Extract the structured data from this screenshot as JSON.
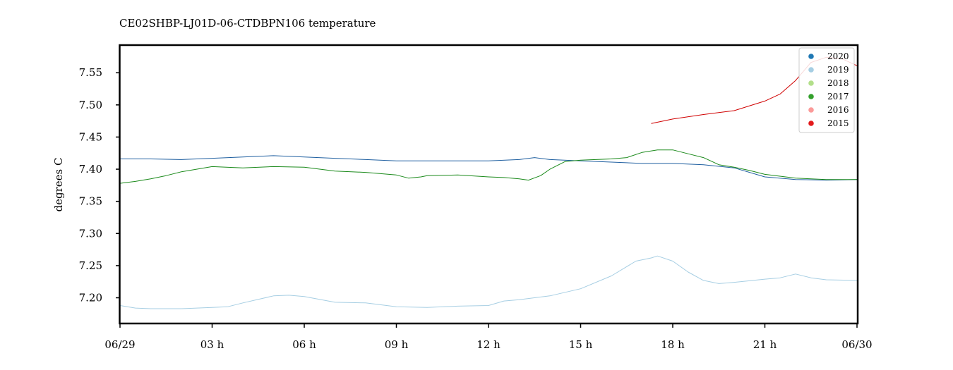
{
  "chart_data": {
    "type": "line",
    "title": "CE02SHBP-LJ01D-06-CTDBPN106 temperature",
    "xlabel": "",
    "ylabel": "degrees C",
    "x_unit": "hours",
    "xlim": [
      0,
      24
    ],
    "ylim": [
      7.16,
      7.593
    ],
    "x_ticks": [
      0,
      3,
      6,
      9,
      12,
      15,
      18,
      21,
      24
    ],
    "x_tick_labels": [
      "06/29",
      "03 h",
      "06 h",
      "09 h",
      "12 h",
      "15 h",
      "18 h",
      "21 h",
      "06/30"
    ],
    "y_ticks": [
      7.2,
      7.25,
      7.3,
      7.35,
      7.4,
      7.45,
      7.5,
      7.55
    ],
    "y_tick_labels": [
      "7.20",
      "7.25",
      "7.30",
      "7.35",
      "7.40",
      "7.45",
      "7.50",
      "7.55"
    ],
    "legend_position": "top-right",
    "grid": false,
    "legend": [
      {
        "name": "2020",
        "color": "#1f78b4"
      },
      {
        "name": "2019",
        "color": "#a6cee3"
      },
      {
        "name": "2018",
        "color": "#b2df8a"
      },
      {
        "name": "2017",
        "color": "#33a02c"
      },
      {
        "name": "2016",
        "color": "#fb9a99"
      },
      {
        "name": "2015",
        "color": "#e31a1c"
      }
    ],
    "series": [
      {
        "name": "2020",
        "color": "#1f5fa0",
        "x": [
          0,
          1,
          2,
          3,
          4,
          5,
          6,
          7,
          8,
          9,
          10,
          11,
          12,
          13,
          13.5,
          14,
          15,
          16,
          17,
          18,
          19,
          20,
          21,
          22,
          23,
          24
        ],
        "y": [
          7.416,
          7.416,
          7.415,
          7.417,
          7.419,
          7.421,
          7.419,
          7.417,
          7.415,
          7.413,
          7.413,
          7.413,
          7.413,
          7.415,
          7.418,
          7.415,
          7.413,
          7.411,
          7.409,
          7.409,
          7.407,
          7.402,
          7.388,
          7.384,
          7.383,
          7.384
        ]
      },
      {
        "name": "2019",
        "color": "#a6cee3",
        "x": [
          0,
          0.5,
          1,
          2,
          3,
          3.5,
          4,
          5,
          5.5,
          6,
          7,
          8,
          9,
          10,
          11,
          12,
          12.5,
          13,
          14,
          15,
          16,
          16.8,
          17.3,
          17.5,
          18,
          18.5,
          19,
          19.5,
          20,
          21,
          21.5,
          22,
          22.5,
          23,
          24
        ],
        "y": [
          7.188,
          7.184,
          7.183,
          7.183,
          7.185,
          7.186,
          7.192,
          7.203,
          7.204,
          7.202,
          7.193,
          7.192,
          7.186,
          7.185,
          7.187,
          7.188,
          7.195,
          7.197,
          7.203,
          7.214,
          7.234,
          7.257,
          7.262,
          7.265,
          7.257,
          7.24,
          7.227,
          7.222,
          7.224,
          7.229,
          7.231,
          7.237,
          7.231,
          7.228,
          7.227
        ]
      },
      {
        "name": "2017",
        "color": "#1b8a1b",
        "x": [
          0,
          0.5,
          1,
          1.5,
          2,
          3,
          4,
          5,
          6,
          7,
          8,
          9,
          9.4,
          9.8,
          10,
          11,
          12,
          12.5,
          13,
          13.3,
          13.7,
          14,
          14.5,
          15,
          16,
          16.5,
          17,
          17.5,
          18,
          18.5,
          19,
          19.5,
          20,
          20.5,
          21,
          22,
          23,
          24
        ],
        "y": [
          7.378,
          7.381,
          7.385,
          7.39,
          7.396,
          7.404,
          7.402,
          7.404,
          7.403,
          7.397,
          7.395,
          7.391,
          7.386,
          7.388,
          7.39,
          7.391,
          7.388,
          7.387,
          7.385,
          7.383,
          7.39,
          7.4,
          7.412,
          7.414,
          7.416,
          7.418,
          7.426,
          7.43,
          7.43,
          7.424,
          7.418,
          7.407,
          7.403,
          7.398,
          7.392,
          7.386,
          7.384,
          7.384
        ]
      },
      {
        "name": "2015",
        "color": "#d00000",
        "x": [
          17.3,
          17.7,
          18,
          19,
          20,
          21,
          21.5,
          22,
          22.5,
          23,
          23.5,
          24
        ],
        "y": [
          7.471,
          7.475,
          7.478,
          7.485,
          7.491,
          7.506,
          7.517,
          7.538,
          7.566,
          7.574,
          7.572,
          7.561
        ]
      }
    ]
  }
}
